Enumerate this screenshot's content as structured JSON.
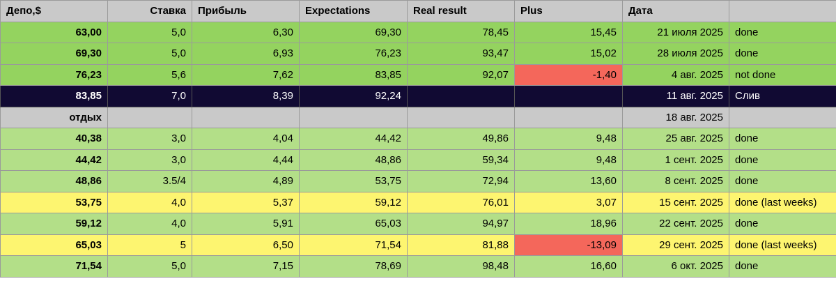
{
  "headers": [
    "Депо,$",
    "Ставка",
    "Прибыль",
    "Expectations",
    "Real result",
    "Plus",
    "Дата",
    ""
  ],
  "colors": {
    "header": "#c9c9c9",
    "green_bright": "#94d35f",
    "green_light": "#b3df88",
    "dark_navy": "#110a33",
    "gray": "#c9c9c9",
    "yellow": "#fdf570",
    "negative_red": "#f4675b"
  },
  "rows": [
    {
      "dep": "63,00",
      "rate": "5,0",
      "profit": "6,30",
      "exp": "69,30",
      "real": "78,45",
      "plus": "15,45",
      "date": "21 июля 2025",
      "status": "done",
      "style": "green_bright",
      "neg": false
    },
    {
      "dep": "69,30",
      "rate": "5,0",
      "profit": "6,93",
      "exp": "76,23",
      "real": "93,47",
      "plus": "15,02",
      "date": "28 июля 2025",
      "status": "done",
      "style": "green_bright",
      "neg": false
    },
    {
      "dep": "76,23",
      "rate": "5,6",
      "profit": "7,62",
      "exp": "83,85",
      "real": "92,07",
      "plus": "-1,40",
      "date": "4 авг. 2025",
      "status": "not done",
      "style": "green_bright",
      "neg": true
    },
    {
      "dep": "83,85",
      "rate": "7,0",
      "profit": "8,39",
      "exp": "92,24",
      "real": "",
      "plus": "",
      "date": "11 авг. 2025",
      "status": "Слив",
      "style": "dark_navy",
      "neg": false
    },
    {
      "dep": "отдых",
      "rate": "",
      "profit": "",
      "exp": "",
      "real": "",
      "plus": "",
      "date": "18 авг. 2025",
      "status": "",
      "style": "gray",
      "neg": false
    },
    {
      "dep": "40,38",
      "rate": "3,0",
      "profit": "4,04",
      "exp": "44,42",
      "real": "49,86",
      "plus": "9,48",
      "date": "25 авг. 2025",
      "status": "done",
      "style": "green_light",
      "neg": false
    },
    {
      "dep": "44,42",
      "rate": "3,0",
      "profit": "4,44",
      "exp": "48,86",
      "real": "59,34",
      "plus": "9,48",
      "date": "1 сент. 2025",
      "status": "done",
      "style": "green_light",
      "neg": false
    },
    {
      "dep": "48,86",
      "rate": "3.5/4",
      "profit": "4,89",
      "exp": "53,75",
      "real": "72,94",
      "plus": "13,60",
      "date": "8 сент. 2025",
      "status": "done",
      "style": "green_light",
      "neg": false
    },
    {
      "dep": "53,75",
      "rate": "4,0",
      "profit": "5,37",
      "exp": "59,12",
      "real": "76,01",
      "plus": "3,07",
      "date": "15 сент. 2025",
      "status": "done (last weeks)",
      "style": "yellow",
      "neg": false
    },
    {
      "dep": "59,12",
      "rate": "4,0",
      "profit": "5,91",
      "exp": "65,03",
      "real": "94,97",
      "plus": "18,96",
      "date": "22 сент. 2025",
      "status": "done",
      "style": "green_light",
      "neg": false
    },
    {
      "dep": "65,03",
      "rate": "5",
      "profit": "6,50",
      "exp": "71,54",
      "real": "81,88",
      "plus": "-13,09",
      "date": "29 сент. 2025",
      "status": "done (last weeks)",
      "style": "yellow",
      "neg": true
    },
    {
      "dep": "71,54",
      "rate": "5,0",
      "profit": "7,15",
      "exp": "78,69",
      "real": "98,48",
      "plus": "16,60",
      "date": "6 окт. 2025",
      "status": "done",
      "style": "green_light",
      "neg": false
    }
  ]
}
